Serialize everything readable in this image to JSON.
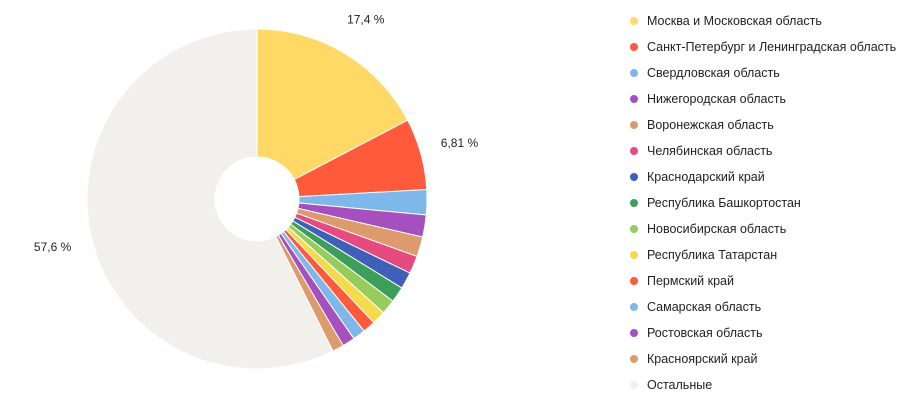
{
  "chart_data": {
    "type": "pie",
    "donut": true,
    "legend_position": "right",
    "slices": [
      {
        "label": "Москва и Московская область",
        "value": 17.4,
        "value_label": "17,4 %",
        "color": "#ffd966"
      },
      {
        "label": "Санкт-Петербург и Ленинградская область",
        "value": 6.81,
        "value_label": "6,81 %",
        "color": "#ff5a3c"
      },
      {
        "label": "Свердловская область",
        "value": 2.4,
        "color": "#7eb7ea"
      },
      {
        "label": "Нижегородская область",
        "value": 2.1,
        "color": "#a64fbf"
      },
      {
        "label": "Воронежская область",
        "value": 1.9,
        "color": "#dd9a6c"
      },
      {
        "label": "Челябинская область",
        "value": 1.7,
        "color": "#e64a7e"
      },
      {
        "label": "Краснодарский край",
        "value": 1.6,
        "color": "#3f5fb8"
      },
      {
        "label": "Республика Башкортостан",
        "value": 1.5,
        "color": "#3d9e5a"
      },
      {
        "label": "Новосибирская область",
        "value": 1.4,
        "color": "#95cc5a"
      },
      {
        "label": "Республика Татарстан",
        "value": 1.3,
        "color": "#f5da4c"
      },
      {
        "label": "Пермский край",
        "value": 1.2,
        "color": "#ff5a3c"
      },
      {
        "label": "Самарская область",
        "value": 1.2,
        "color": "#7eb7ea"
      },
      {
        "label": "Ростовская область",
        "value": 1.2,
        "color": "#a64fbf"
      },
      {
        "label": "Красноярский край",
        "value": 1.1,
        "color": "#dd9a6c"
      },
      {
        "label": "Остальные",
        "value": 57.6,
        "value_label": "57,6 %",
        "color": "#f1f0ed"
      }
    ]
  }
}
